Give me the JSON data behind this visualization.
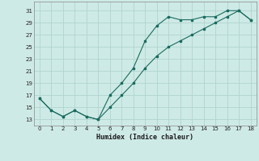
{
  "xlabel": "Humidex (Indice chaleur)",
  "bg_color": "#ceeae6",
  "grid_color": "#afd4cf",
  "line_color": "#1a6b5e",
  "series1_x": [
    0,
    1,
    2,
    3,
    4,
    5,
    6,
    7,
    8,
    9,
    10,
    11,
    12,
    13,
    14,
    15,
    16,
    17,
    18
  ],
  "series1_y": [
    16.5,
    14.5,
    13.5,
    14.5,
    13.5,
    13.0,
    17.0,
    19.0,
    21.5,
    26.0,
    28.5,
    30.0,
    29.5,
    29.5,
    30.0,
    30.0,
    31.0,
    31.0,
    29.5
  ],
  "series2_x": [
    0,
    1,
    2,
    3,
    4,
    5,
    6,
    7,
    8,
    9,
    10,
    11,
    12,
    13,
    14,
    15,
    16,
    17,
    18
  ],
  "series2_y": [
    16.5,
    14.5,
    13.5,
    14.5,
    13.5,
    13.0,
    15.0,
    17.0,
    19.0,
    21.5,
    23.5,
    25.0,
    26.0,
    27.0,
    28.0,
    29.0,
    30.0,
    31.0,
    29.5
  ],
  "yticks": [
    13,
    15,
    17,
    19,
    21,
    23,
    25,
    27,
    29,
    31
  ],
  "xticks": [
    0,
    1,
    2,
    3,
    4,
    5,
    6,
    7,
    8,
    9,
    10,
    11,
    12,
    13,
    14,
    15,
    16,
    17,
    18
  ],
  "ylim": [
    12.0,
    32.5
  ],
  "xlim": [
    -0.5,
    18.5
  ]
}
